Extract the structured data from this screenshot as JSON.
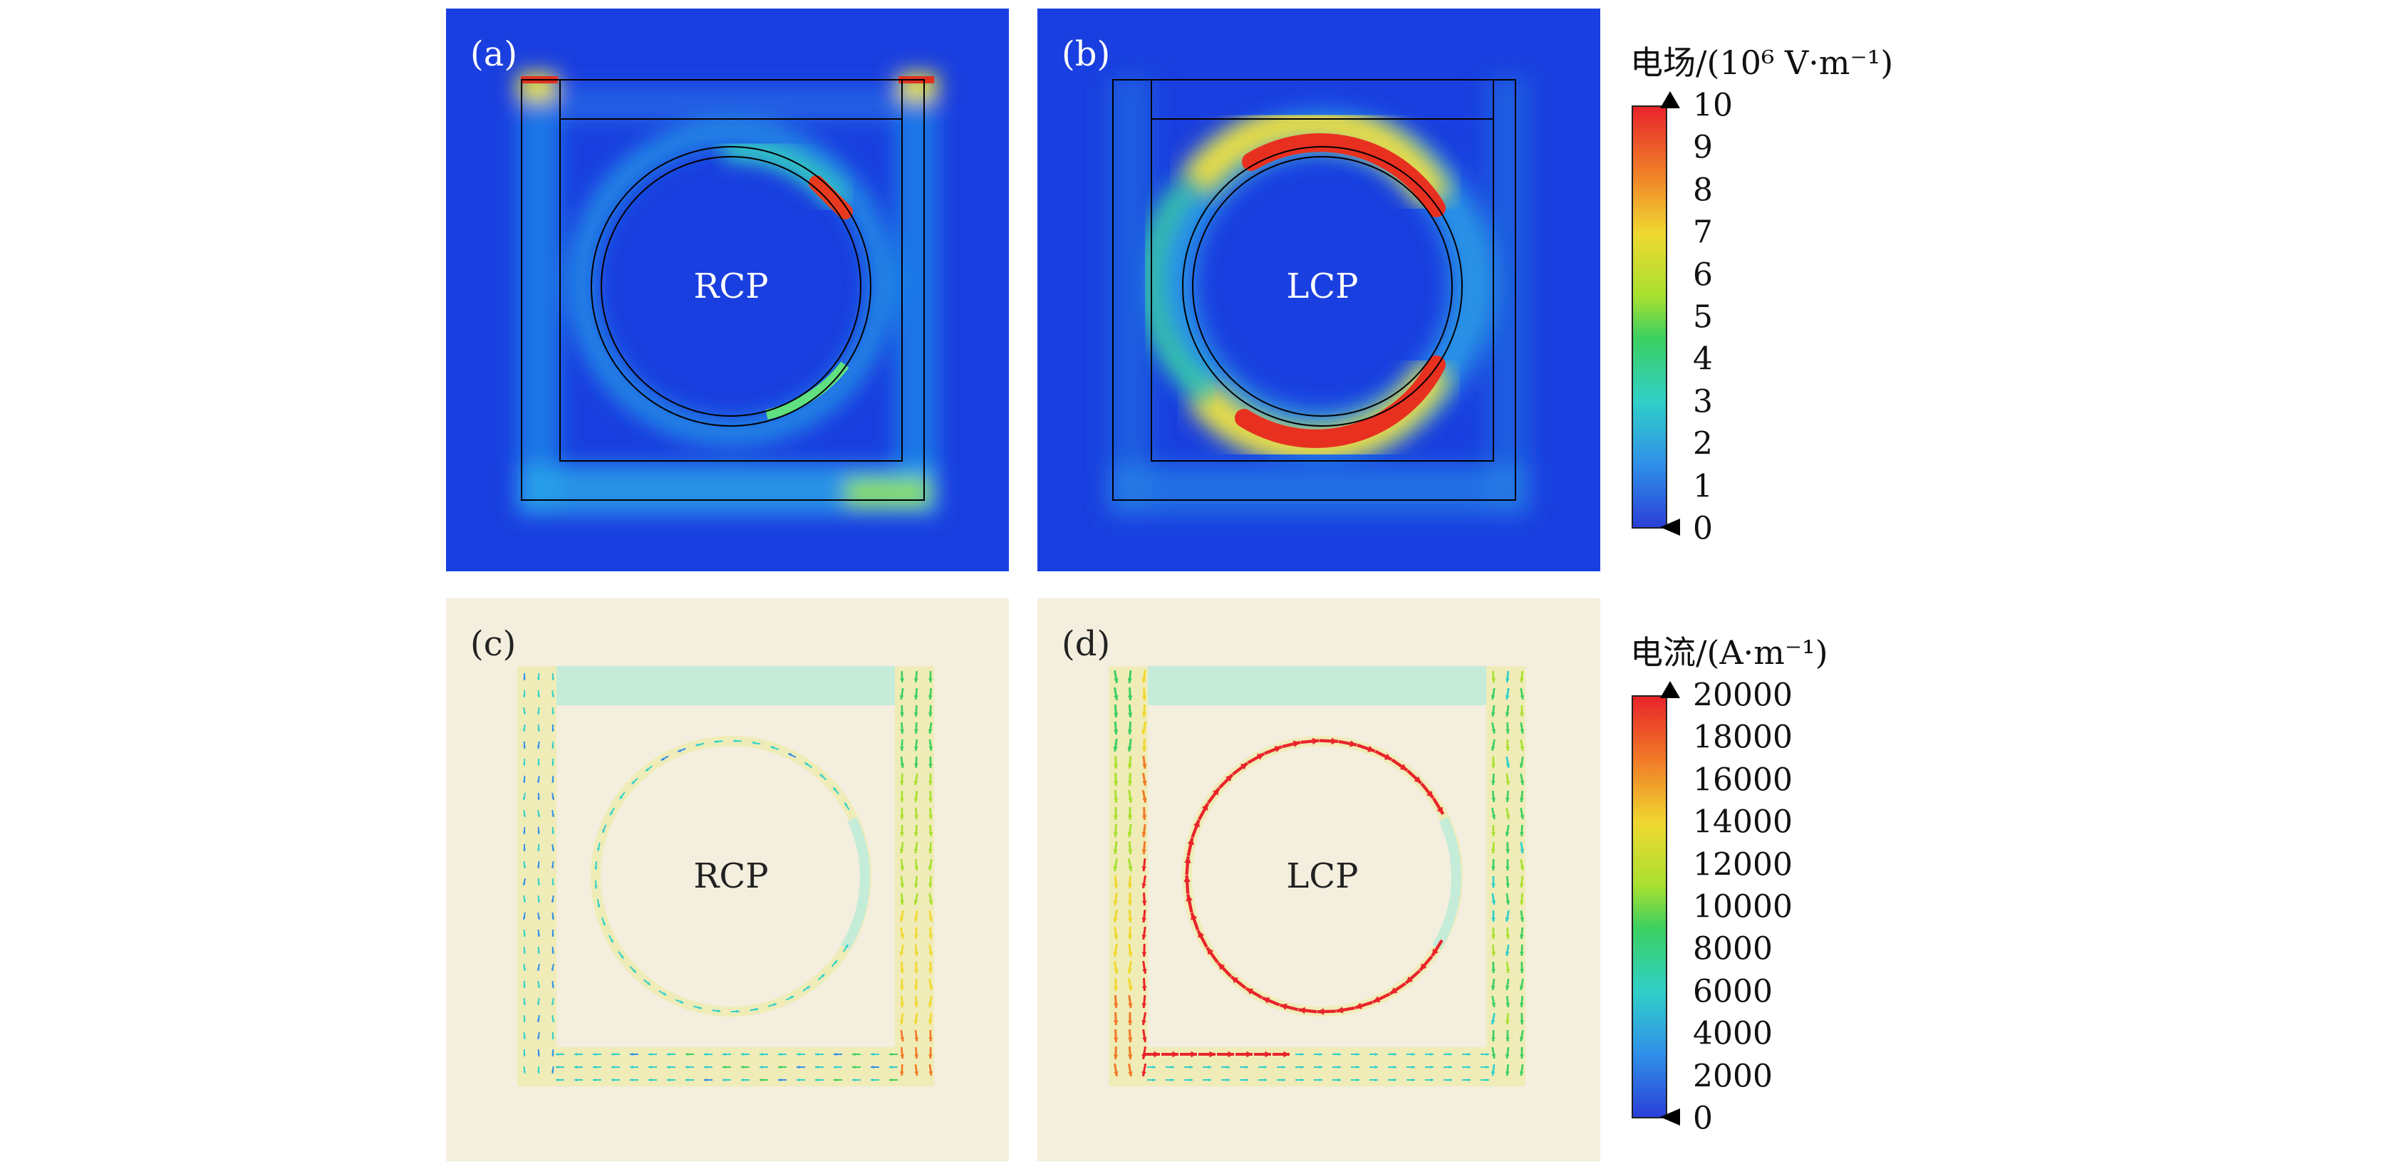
{
  "panels": [
    {
      "id": "a",
      "tag": "(a)",
      "label": "RCP",
      "kind": "field"
    },
    {
      "id": "b",
      "tag": "(b)",
      "label": "LCP",
      "kind": "field"
    },
    {
      "id": "c",
      "tag": "(c)",
      "label": "RCP",
      "kind": "current"
    },
    {
      "id": "d",
      "tag": "(d)",
      "label": "LCP",
      "kind": "current"
    }
  ],
  "colorbars": {
    "field": {
      "title": "电场/(10⁶ V·m⁻¹)",
      "ticks": [
        "10",
        "9",
        "8",
        "7",
        "6",
        "5",
        "4",
        "3",
        "2",
        "1",
        "0"
      ]
    },
    "current": {
      "title": "电流/(A·m⁻¹)",
      "ticks": [
        "20000",
        "18000",
        "16000",
        "14000",
        "12000",
        "10000",
        "8000",
        "6000",
        "4000",
        "2000",
        "0"
      ]
    }
  },
  "colors": {
    "field_bg": "#1a3fe0",
    "current_bg": "#f3eedd",
    "current_metal": "#f0ecb8",
    "current_gap": "#c4ecd9"
  }
}
